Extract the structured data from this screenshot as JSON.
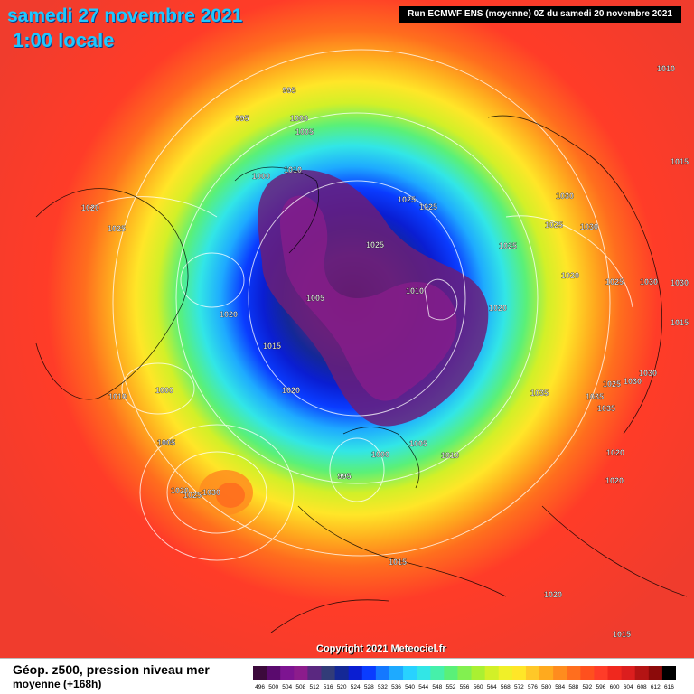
{
  "header": {
    "date": "samedi 27 novembre 2021",
    "time": "1:00 locale",
    "run": "Run ECMWF ENS (moyenne) 0Z du samedi 20 novembre 2021"
  },
  "map": {
    "copyright": "Copyright 2021 Meteociel.fr",
    "pressure_labels": [
      "995",
      "995",
      "1000",
      "1005",
      "1010",
      "1000",
      "1025",
      "1025",
      "1025",
      "1010",
      "1005",
      "1020",
      "1015",
      "1000",
      "1010",
      "1005",
      "1020",
      "1020",
      "1025",
      "1020",
      "1025",
      "1030",
      "1025",
      "1030",
      "1020",
      "1035",
      "1030",
      "1025",
      "1035",
      "1030",
      "1030",
      "1025",
      "1030",
      "1035",
      "1020",
      "1020",
      "1010",
      "1005",
      "1000",
      "995",
      "1005",
      "1015",
      "1020",
      "1015",
      "1015",
      "1020",
      "1025",
      "1030",
      "1010",
      "1015"
    ]
  },
  "legend": {
    "title": "Géop. z500, pression niveau mer",
    "subtitle": "moyenne  (+168h)",
    "scale_values": [
      "496",
      "500",
      "504",
      "508",
      "512",
      "516",
      "520",
      "524",
      "528",
      "532",
      "536",
      "540",
      "544",
      "548",
      "552",
      "556",
      "560",
      "564",
      "568",
      "572",
      "576",
      "580",
      "584",
      "588",
      "592",
      "596",
      "600",
      "604",
      "608",
      "612",
      "616"
    ],
    "scale_colors": [
      "#3c0a3c",
      "#5a0a6e",
      "#7d1491",
      "#8c1c8c",
      "#5a2880",
      "#323c78",
      "#142896",
      "#0a1ed2",
      "#0a3cff",
      "#1478ff",
      "#1eaaff",
      "#28d2ff",
      "#32e6e6",
      "#46f0aa",
      "#5af078",
      "#82f050",
      "#aaf032",
      "#d2f028",
      "#f0f028",
      "#ffe628",
      "#ffc828",
      "#ffaa1e",
      "#ff8c1e",
      "#ff6e1e",
      "#ff501e",
      "#ff3c28",
      "#f0281e",
      "#dc1e1e",
      "#b41414",
      "#8c0a0a",
      "#000000"
    ]
  }
}
